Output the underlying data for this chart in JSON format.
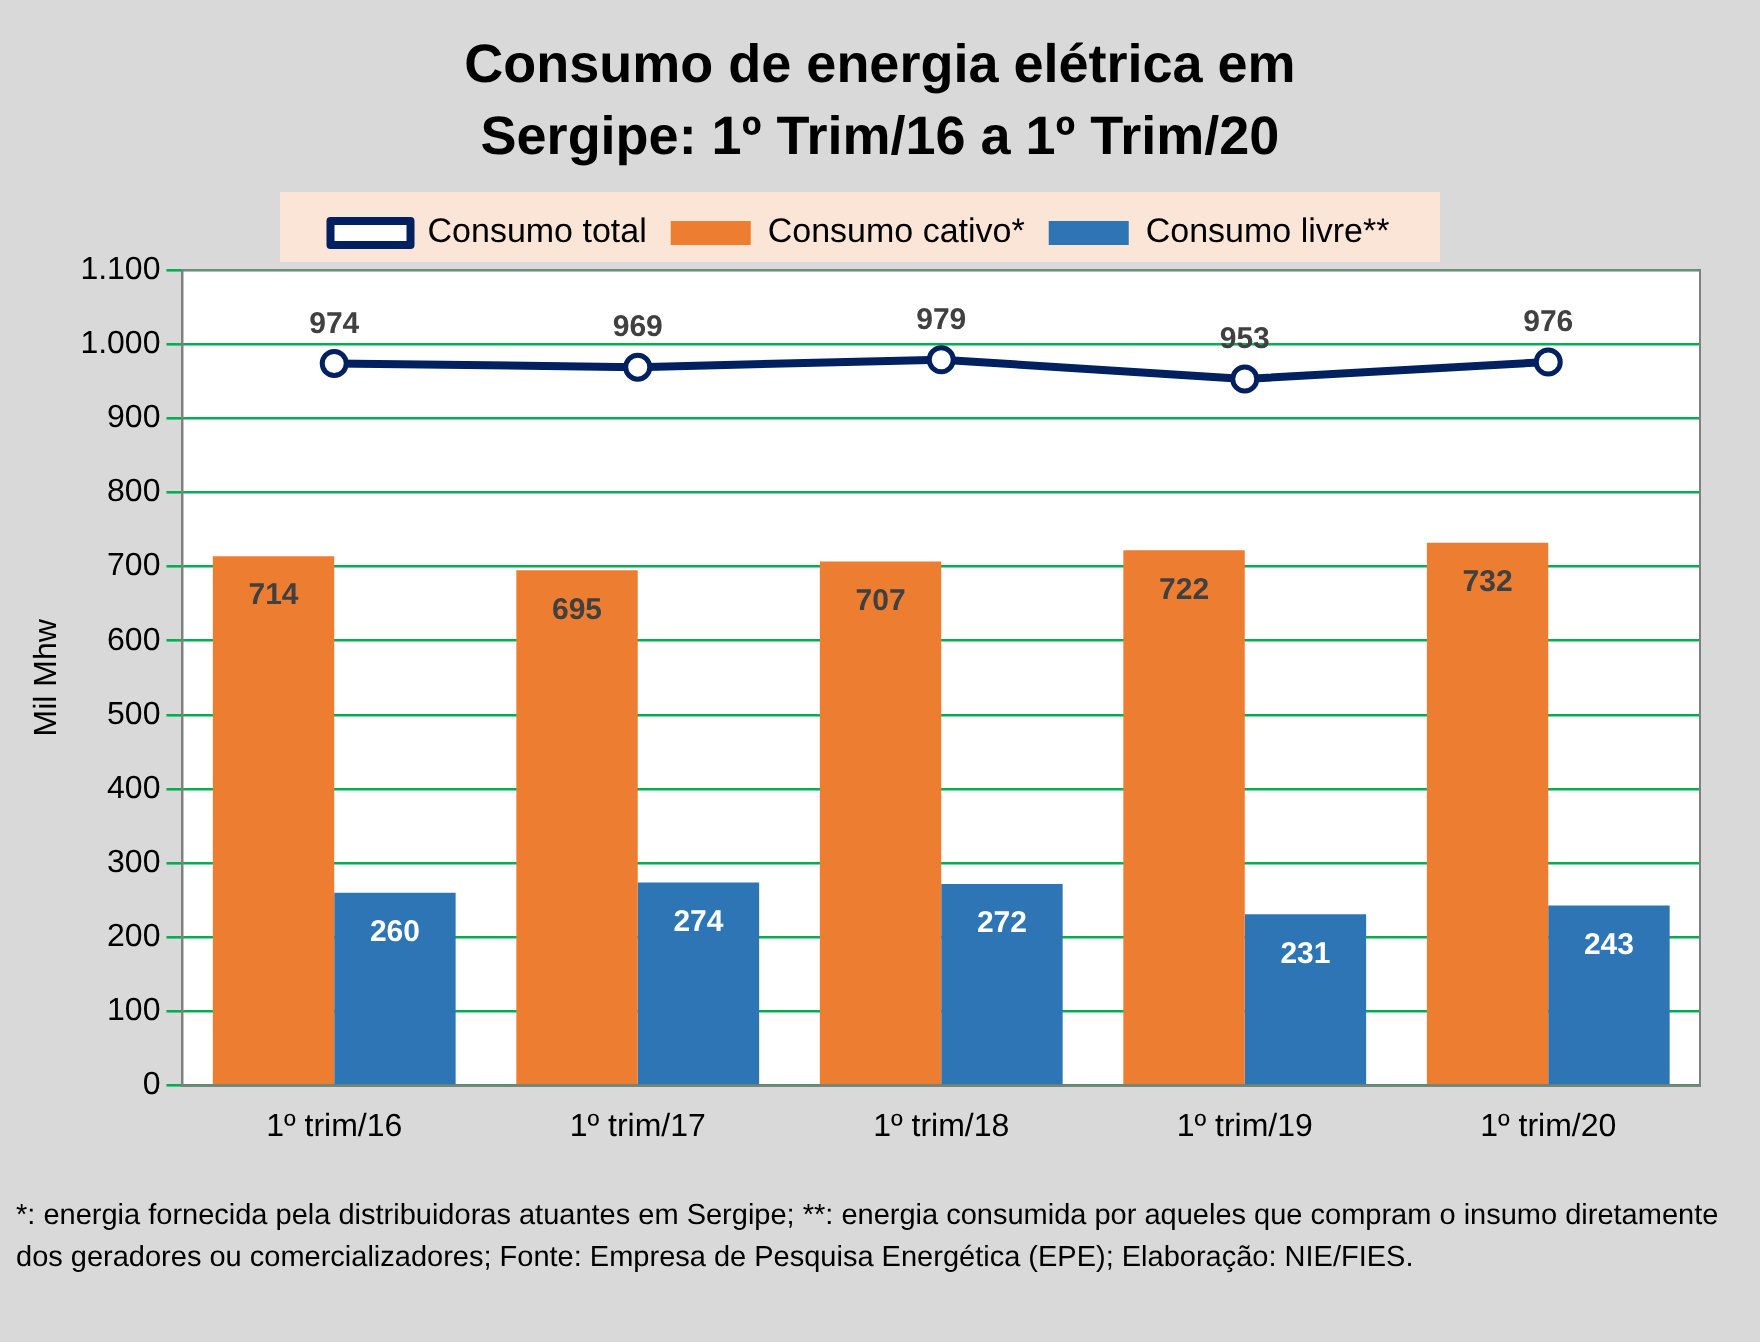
{
  "chart_data": {
    "type": "bar",
    "title": "Consumo de energia elétrica em Sergipe: 1º Trim/16 a 1º Trim/20",
    "ylabel": "Mil Mhw",
    "categories": [
      "1º trim/16",
      "1º trim/17",
      "1º trim/18",
      "1º trim/19",
      "1º trim/20"
    ],
    "series": [
      {
        "name": "Consumo cativo*",
        "color": "#ed7d31",
        "values": [
          714,
          695,
          707,
          722,
          732
        ]
      },
      {
        "name": "Consumo livre**",
        "color": "#2e75b6",
        "values": [
          260,
          274,
          272,
          231,
          243
        ]
      },
      {
        "name": "Consumo total",
        "type": "line",
        "color": "#002060",
        "values": [
          974,
          969,
          979,
          953,
          976
        ]
      }
    ],
    "ylim": [
      0,
      1100
    ],
    "yticks": [
      0,
      100,
      200,
      300,
      400,
      500,
      600,
      700,
      800,
      900,
      {
        "value": 1000,
        "label": "1.000"
      },
      {
        "value": 1100,
        "label": "1.100"
      }
    ],
    "grid": "y",
    "legend": "top",
    "marker": "circle",
    "line_style": "solid",
    "data_labels": true,
    "annotations": [
      "*: energia fornecida pela distribuidoras atuantes em Sergipe; **: energia consumida por aqueles que compram o insumo diretamente dos geradores ou comercializadores; Fonte: Empresa de Pesquisa Energética (EPE); Elaboração: NIE/FIES."
    ]
  }
}
